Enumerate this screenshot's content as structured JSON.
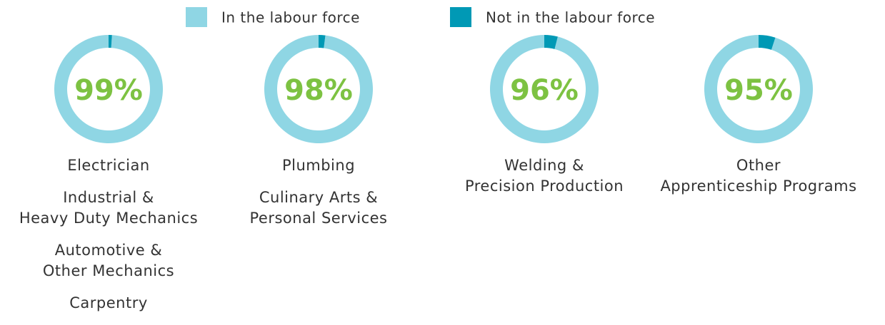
{
  "legend": {
    "names": [
      "In the labour force",
      "Not in the labour force"
    ],
    "colors": [
      "#8fd6e4",
      "#0099b5"
    ]
  },
  "chart_data": [
    {
      "type": "pie",
      "categories": [
        "In the labour force",
        "Not in the labour force"
      ],
      "values": [
        99,
        1
      ],
      "value_labels": [
        "99%",
        null
      ],
      "programs": [
        "Electrician",
        "Industrial &\nHeavy Duty Mechanics",
        "Automotive &\nOther Mechanics",
        "Carpentry"
      ]
    },
    {
      "type": "pie",
      "categories": [
        "In the labour force",
        "Not in the labour force"
      ],
      "values": [
        98,
        2
      ],
      "value_labels": [
        "98%",
        null
      ],
      "programs": [
        "Plumbing",
        "Culinary Arts &\nPersonal Services"
      ]
    },
    {
      "type": "pie",
      "categories": [
        "In the labour force",
        "Not in the labour force"
      ],
      "values": [
        96,
        4
      ],
      "value_labels": [
        "96%",
        null
      ],
      "programs": [
        "Welding &\nPrecision Production"
      ]
    },
    {
      "type": "pie",
      "categories": [
        "In the labour force",
        "Not in the labour force"
      ],
      "values": [
        95,
        5
      ],
      "value_labels": [
        "95%",
        null
      ],
      "programs": [
        "Other\nApprenticeship Programs"
      ]
    }
  ]
}
